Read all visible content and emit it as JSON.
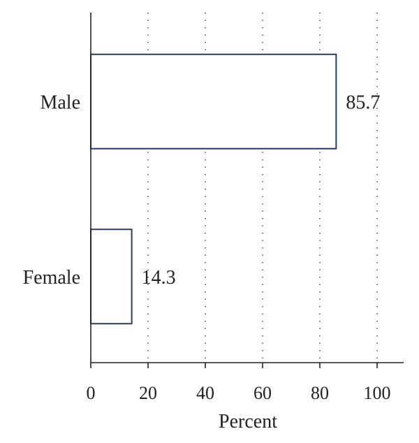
{
  "chart_data": {
    "type": "bar",
    "orientation": "horizontal",
    "categories": [
      "Male",
      "Female"
    ],
    "values": [
      85.7,
      14.3
    ],
    "data_labels": [
      "85.7",
      "14.3"
    ],
    "title": "",
    "xlabel": "Percent",
    "ylabel": "",
    "xlim": [
      0,
      100
    ],
    "xticks": [
      0,
      20,
      40,
      60,
      80,
      100
    ],
    "xtick_labels": [
      "0",
      "20",
      "40",
      "60",
      "80",
      "100"
    ],
    "grid": "vertical dotted",
    "legend": "none",
    "colors": {
      "bar_stroke": "#2b3a67",
      "bar_fill": "#ffffff",
      "axis": "#222222",
      "grid": "#444444"
    }
  }
}
